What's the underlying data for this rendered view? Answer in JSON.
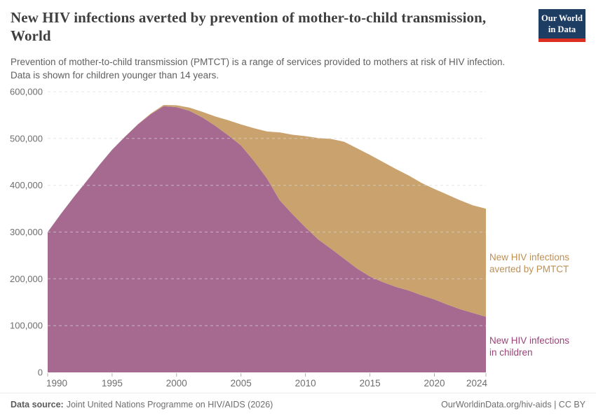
{
  "header": {
    "title": "New HIV infections averted by prevention of mother-to-child transmission, World",
    "subtitle_line1": "Prevention of mother-to-child transmission (PMTCT) is a range of services provided to mothers at risk of HIV infection.",
    "subtitle_line2": "Data is shown for children younger than 14 years.",
    "logo": {
      "line1": "Our World",
      "line2": "in Data",
      "bg_color": "#1d3d63",
      "accent_color": "#dc2f22"
    }
  },
  "chart_data": {
    "type": "area",
    "stacked": true,
    "title": "New HIV infections averted by prevention of mother-to-child transmission, World",
    "xlabel": "",
    "ylabel": "",
    "grid": "horizontal dashed",
    "legend_position": "right-of-plot inline labels",
    "xlim": [
      1990,
      2024
    ],
    "ylim": [
      0,
      600000
    ],
    "x": [
      1990,
      1991,
      1992,
      1993,
      1994,
      1995,
      1996,
      1997,
      1998,
      1999,
      2000,
      2001,
      2002,
      2003,
      2004,
      2005,
      2006,
      2007,
      2008,
      2009,
      2010,
      2011,
      2012,
      2013,
      2014,
      2015,
      2016,
      2017,
      2018,
      2019,
      2020,
      2021,
      2022,
      2023,
      2024
    ],
    "series": [
      {
        "name": "New HIV infections in children",
        "label_lines": [
          "New HIV infections",
          "in children"
        ],
        "color": "#a66a90",
        "label_color": "#9a4477",
        "values": [
          300000,
          338000,
          374000,
          408000,
          443000,
          476000,
          504000,
          530000,
          552000,
          569000,
          567000,
          559000,
          545000,
          527000,
          507000,
          485000,
          452000,
          415000,
          368000,
          338000,
          310000,
          284000,
          264000,
          243000,
          222000,
          205000,
          193000,
          183000,
          175000,
          165000,
          156000,
          145000,
          135000,
          127000,
          119000
        ]
      },
      {
        "name": "New HIV infections averted by PMTCT",
        "label_lines": [
          "New HIV infections",
          "averted by PMTCT"
        ],
        "color": "#c9a26e",
        "label_color": "#bd8f53",
        "values": [
          0,
          0,
          0,
          0,
          0,
          0,
          0,
          500,
          1500,
          2500,
          4000,
          7000,
          12000,
          20000,
          32000,
          45000,
          70000,
          100000,
          145000,
          170000,
          195000,
          217000,
          235000,
          250000,
          257000,
          260000,
          257000,
          252000,
          246000,
          240000,
          236000,
          235000,
          233000,
          230000,
          231000
        ]
      }
    ],
    "yticks": [
      0,
      100000,
      200000,
      300000,
      400000,
      500000,
      600000
    ],
    "ytick_labels": [
      "0",
      "100,000",
      "200,000",
      "300,000",
      "400,000",
      "500,000",
      "600,000"
    ],
    "xticks": [
      1990,
      1995,
      2000,
      2005,
      2010,
      2015,
      2020,
      2024
    ],
    "xtick_labels": [
      "1990",
      "1995",
      "2000",
      "2005",
      "2010",
      "2015",
      "2020",
      "2024"
    ],
    "axis_text_color": "#6e6e6e",
    "grid_color": "#d8d8d8",
    "tick_color": "#b0b0b0"
  },
  "footer": {
    "source_label": "Data source:",
    "source": "Joint United Nations Programme on HIV/AIDS (2026)",
    "credit": "OurWorldinData.org/hiv-aids | CC BY"
  }
}
